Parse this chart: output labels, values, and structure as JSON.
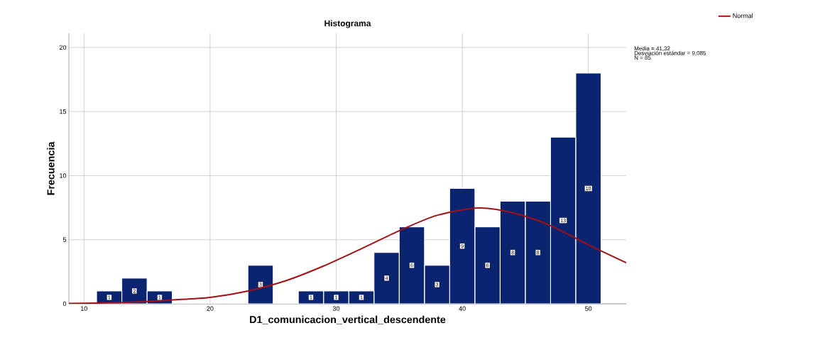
{
  "chart_data": {
    "type": "histogram",
    "title": "Histograma",
    "xlabel": "D1_comunicacion_vertical_descendente",
    "ylabel": "Frecuencia",
    "bins": [
      11,
      13,
      15,
      17,
      19,
      21,
      23,
      25,
      27,
      29,
      31,
      33,
      35,
      37,
      39,
      41,
      43,
      45,
      47,
      49,
      51
    ],
    "values": [
      1,
      2,
      1,
      0,
      0,
      0,
      3,
      0,
      1,
      1,
      1,
      4,
      6,
      3,
      9,
      6,
      8,
      8,
      13,
      18
    ],
    "value_labels": [
      "1",
      "2",
      "1",
      null,
      null,
      null,
      "3",
      null,
      "1",
      "1",
      "1",
      "4",
      "6",
      "3",
      "9",
      "6",
      "8",
      "8",
      "13",
      "18"
    ],
    "color": "#0b2470",
    "series": [
      {
        "name": "Normal",
        "type": "line",
        "color": "#a50f15",
        "x": [
          8.8,
          11,
          13,
          15,
          17,
          20,
          23,
          26,
          29,
          32,
          35,
          38,
          41.3,
          44,
          47,
          50,
          53
        ],
        "values": [
          0.03,
          0.06,
          0.1,
          0.18,
          0.3,
          0.5,
          1.0,
          1.8,
          2.95,
          4.3,
          5.7,
          6.9,
          7.47,
          7.1,
          6.1,
          4.6,
          3.2
        ]
      }
    ],
    "xlim": [
      8.8,
      53
    ],
    "ylim": [
      0,
      21.1
    ],
    "xticks": [
      10,
      20,
      30,
      40,
      50
    ],
    "yticks": [
      0,
      5,
      10,
      15,
      20
    ],
    "grid": true,
    "legend": "top right",
    "annotations": [
      "Media = 41,32",
      "Desviación estándar = 9,085",
      "N = 85"
    ]
  }
}
